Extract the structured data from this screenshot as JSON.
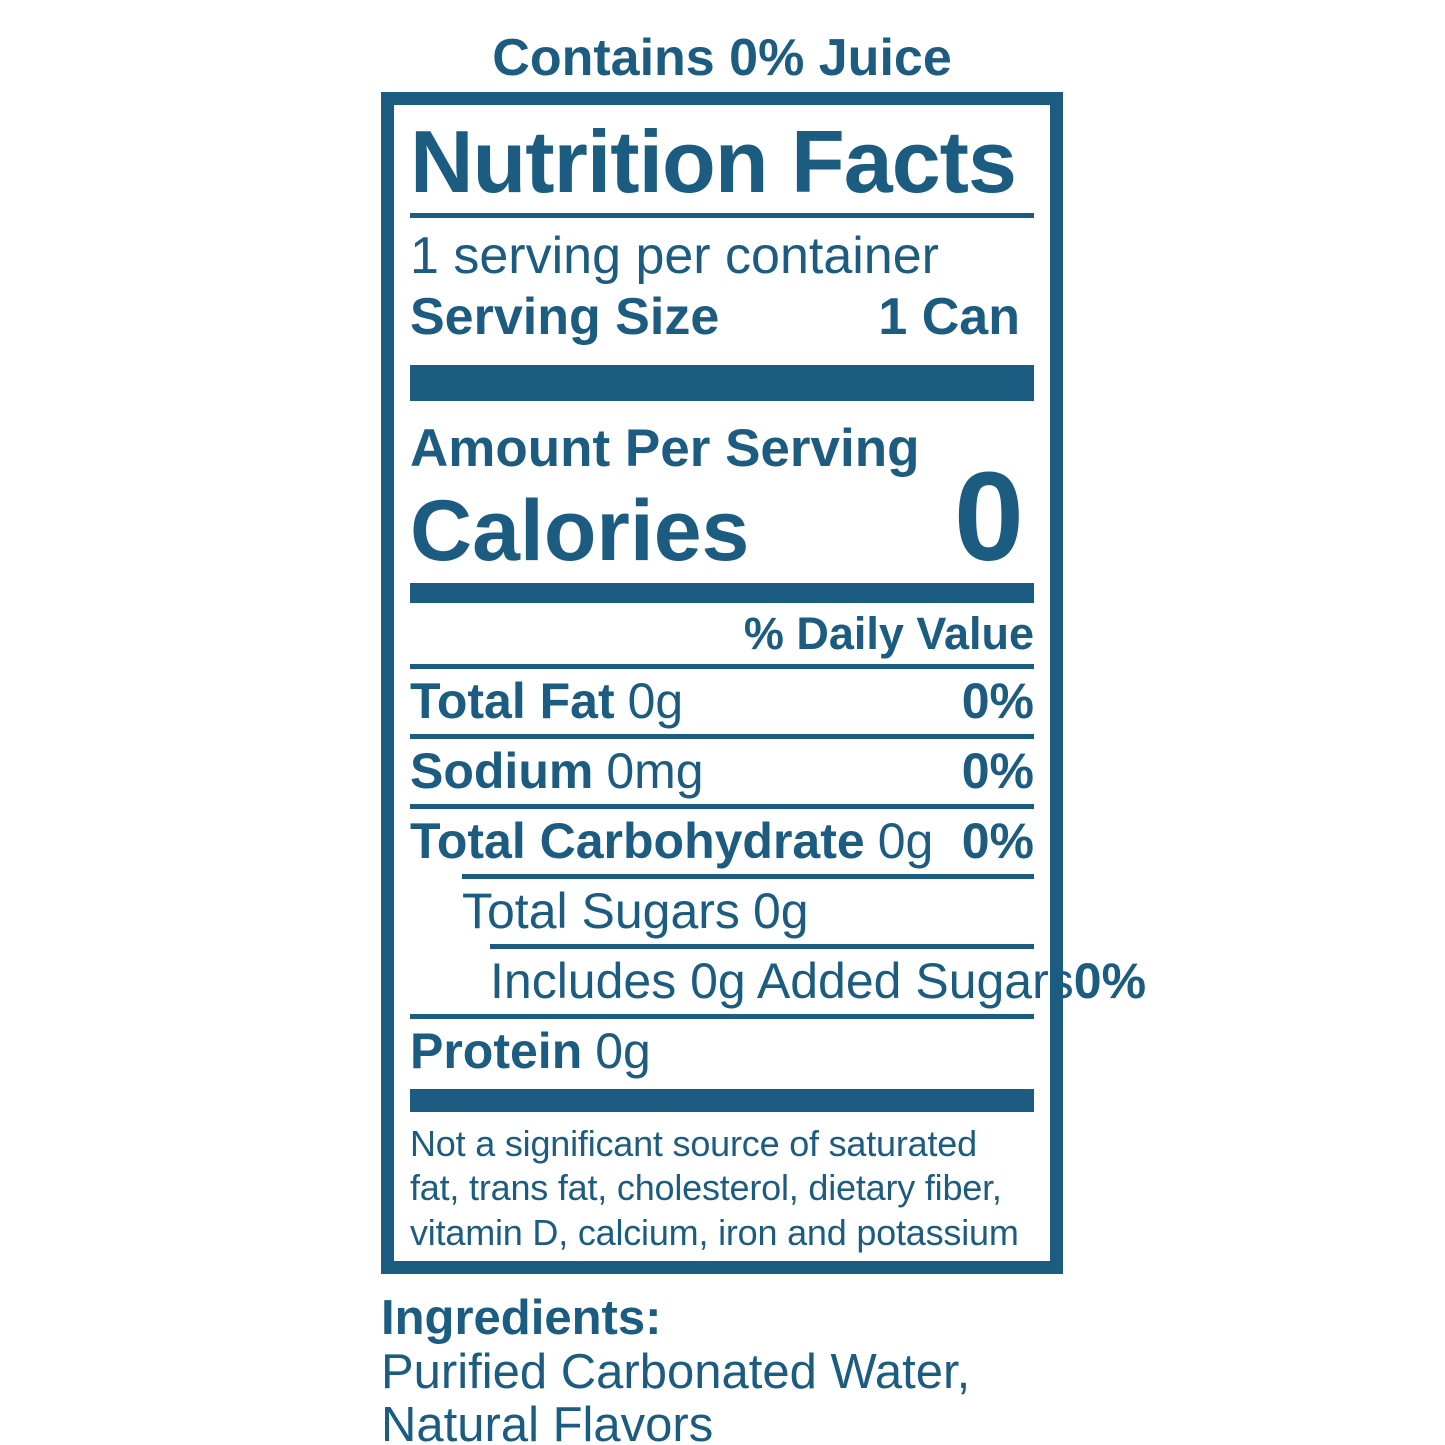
{
  "colors": {
    "accent": "#1b5c80",
    "background": "#ffffff"
  },
  "top_note": "Contains 0% Juice",
  "nutrition": {
    "title": "Nutrition Facts",
    "servings_per_container": "1 serving per container",
    "serving_size": {
      "label": "Serving Size",
      "value": "1 Can"
    },
    "amount_per_serving": "Amount Per Serving",
    "calories": {
      "label": "Calories",
      "value": "0"
    },
    "daily_value_header": "% Daily Value",
    "rows": [
      {
        "name": "Total Fat",
        "amount": "0g",
        "dv": "0%"
      },
      {
        "name": "Sodium",
        "amount": "0mg",
        "dv": "0%"
      },
      {
        "name": "Total Carbohydrate",
        "amount": "0g",
        "dv": "0%"
      },
      {
        "name": "Total Sugars",
        "amount": "0g",
        "dv": ""
      },
      {
        "name": "Includes 0g Added Sugars",
        "amount": "",
        "dv": "0%"
      },
      {
        "name": "Protein",
        "amount": "0g",
        "dv": ""
      }
    ],
    "footnote": "Not a significant source of saturated fat, trans fat, cholesterol, dietary fiber, vitamin D, calcium, iron and potassium"
  },
  "ingredients": {
    "heading": "Ingredients:",
    "lines": [
      "Purified Carbonated Water,",
      "Natural Flavors"
    ]
  }
}
